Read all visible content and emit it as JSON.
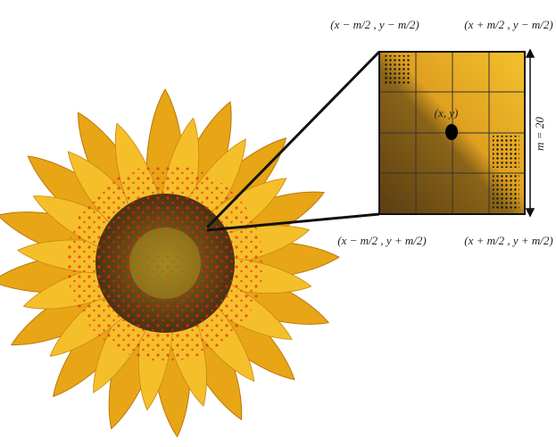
{
  "corners": {
    "top_left": "(x − m/2 , y − m/2)",
    "top_right": "(x + m/2 , y − m/2)",
    "bottom_left": "(x − m/2 , y + m/2)",
    "bottom_right": "(x + m/2 , y + m/2)"
  },
  "center": "(x, y)",
  "size_label": "m = 20"
}
